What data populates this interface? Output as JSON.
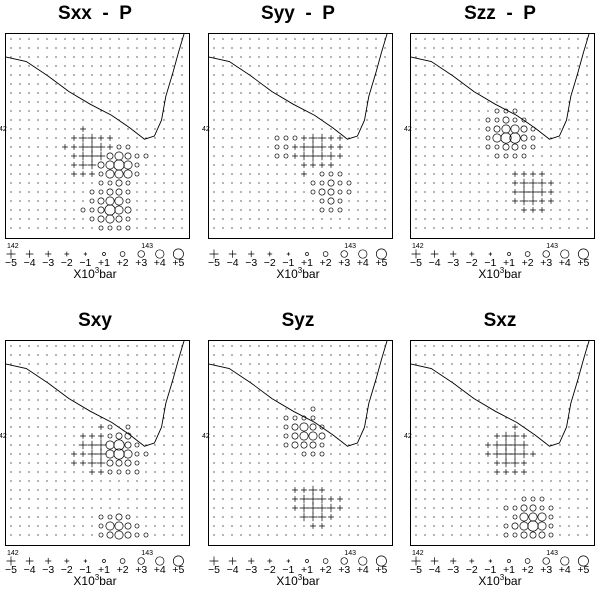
{
  "chart_data": [
    {
      "type": "scatter",
      "title": "Sxx  -  P",
      "x_ticks": [
        "142",
        "143"
      ],
      "y_ticks": [
        "42"
      ],
      "legend": {
        "labels": [
          "−5",
          "−4",
          "−3",
          "−2",
          "−1",
          "+1",
          "+2",
          "+3",
          "+4",
          "+5"
        ],
        "unit_prefix": "X10",
        "unit_exp": "3",
        "unit_suffix": "bar"
      },
      "blobs": [
        {
          "x": 142.6,
          "y": 41.85,
          "sign": "+",
          "mag": 3
        },
        {
          "x": 142.8,
          "y": 41.75,
          "sign": "-",
          "mag": 4
        },
        {
          "x": 142.75,
          "y": 41.5,
          "sign": "-",
          "mag": 4
        }
      ]
    },
    {
      "type": "scatter",
      "title": "Syy  -  P",
      "x_ticks": [
        "",
        "143"
      ],
      "y_ticks": [
        "42"
      ],
      "legend": {
        "labels": [
          "−5",
          "−4",
          "−3",
          "−2",
          "−1",
          "+1",
          "+2",
          "+3",
          "+4",
          "+5"
        ],
        "unit_prefix": "X10",
        "unit_exp": "3",
        "unit_suffix": "bar"
      },
      "blobs": [
        {
          "x": 142.75,
          "y": 41.85,
          "sign": "+",
          "mag": 3
        },
        {
          "x": 142.85,
          "y": 41.6,
          "sign": "-",
          "mag": 2
        },
        {
          "x": 142.55,
          "y": 41.9,
          "sign": "-",
          "mag": 1
        }
      ]
    },
    {
      "type": "scatter",
      "title": "Szz  -  P",
      "x_ticks": [
        "142",
        "143"
      ],
      "y_ticks": [
        "42"
      ],
      "legend": {
        "labels": [
          "−5",
          "−4",
          "−3",
          "−2",
          "−1",
          "+1",
          "+2",
          "+3",
          "+4",
          "+5"
        ],
        "unit_prefix": "X10",
        "unit_exp": "3",
        "unit_suffix": "bar"
      },
      "blobs": [
        {
          "x": 142.7,
          "y": 41.95,
          "sign": "-",
          "mag": 4
        },
        {
          "x": 142.85,
          "y": 41.6,
          "sign": "+",
          "mag": 3
        }
      ]
    },
    {
      "type": "scatter",
      "title": "Sxy",
      "x_ticks": [
        "142",
        "143"
      ],
      "y_ticks": [
        "42"
      ],
      "legend": {
        "labels": [
          "−5",
          "−4",
          "−3",
          "−2",
          "−1",
          "+1",
          "+2",
          "+3",
          "+4",
          "+5"
        ],
        "unit_prefix": "X10",
        "unit_exp": "3",
        "unit_suffix": "bar"
      },
      "blobs": [
        {
          "x": 142.65,
          "y": 41.9,
          "sign": "+",
          "mag": 3
        },
        {
          "x": 142.8,
          "y": 41.9,
          "sign": "-",
          "mag": 4
        },
        {
          "x": 142.8,
          "y": 41.4,
          "sign": "-",
          "mag": 3
        }
      ]
    },
    {
      "type": "scatter",
      "title": "Syz",
      "x_ticks": [
        "",
        "143"
      ],
      "y_ticks": [
        "42"
      ],
      "legend": {
        "labels": [
          "−5",
          "−4",
          "−3",
          "−2",
          "−1",
          "+1",
          "+2",
          "+3",
          "+4",
          "+5"
        ],
        "unit_prefix": "X10",
        "unit_exp": "3",
        "unit_suffix": "bar"
      },
      "blobs": [
        {
          "x": 142.7,
          "y": 42.0,
          "sign": "-",
          "mag": 3
        },
        {
          "x": 142.75,
          "y": 41.55,
          "sign": "+",
          "mag": 3
        }
      ]
    },
    {
      "type": "scatter",
      "title": "Sxz",
      "x_ticks": [
        "142",
        "143"
      ],
      "y_ticks": [
        "42"
      ],
      "legend": {
        "labels": [
          "−5",
          "−4",
          "−3",
          "−2",
          "−1",
          "+1",
          "+2",
          "+3",
          "+4",
          "+5"
        ],
        "unit_prefix": "X10",
        "unit_exp": "3",
        "unit_suffix": "bar"
      },
      "blobs": [
        {
          "x": 142.7,
          "y": 41.9,
          "sign": "+",
          "mag": 4
        },
        {
          "x": 142.85,
          "y": 41.45,
          "sign": "-",
          "mag": 4
        }
      ]
    }
  ]
}
